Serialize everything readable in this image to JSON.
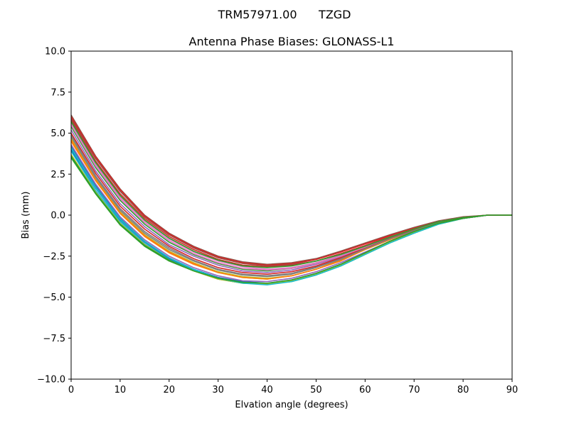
{
  "figure": {
    "suptitle": "TRM57971.00      TZGD"
  },
  "chart_data": {
    "type": "line",
    "title": "Antenna Phase Biases: GLONASS-L1",
    "xlabel": "Elvation angle (degrees)",
    "ylabel": "Bias (mm)",
    "xlim": [
      0,
      90
    ],
    "ylim": [
      -10,
      10
    ],
    "x_ticks": [
      0,
      10,
      20,
      30,
      40,
      50,
      60,
      70,
      80,
      90
    ],
    "x_tick_labels": [
      "0",
      "10",
      "20",
      "30",
      "40",
      "50",
      "60",
      "70",
      "80",
      "90"
    ],
    "y_ticks": [
      10,
      7.5,
      5,
      2.5,
      0,
      -2.5,
      -5,
      -7.5,
      -10
    ],
    "y_tick_labels": [
      "10.0",
      "7.5",
      "5.0",
      "2.5",
      "0.0",
      "−2.5",
      "−5.0",
      "−7.5",
      "−10.0"
    ],
    "grid": false,
    "legend": "none",
    "x": [
      0,
      5,
      10,
      15,
      20,
      25,
      30,
      35,
      40,
      45,
      50,
      55,
      60,
      65,
      70,
      75,
      80,
      85,
      90
    ],
    "series": [
      {
        "color": "#1f77b4",
        "values": [
          4.2,
          1.8,
          -0.2,
          -1.6,
          -2.6,
          -3.3,
          -3.8,
          -4.1,
          -4.2,
          -4.0,
          -3.6,
          -3.0,
          -2.3,
          -1.6,
          -1.0,
          -0.5,
          -0.2,
          0.0,
          0.0
        ]
      },
      {
        "color": "#ff7f0e",
        "values": [
          4.5,
          2.1,
          0.1,
          -1.3,
          -2.3,
          -3.0,
          -3.5,
          -3.8,
          -3.9,
          -3.7,
          -3.3,
          -2.8,
          -2.1,
          -1.5,
          -0.9,
          -0.45,
          -0.15,
          0.0,
          0.0
        ]
      },
      {
        "color": "#2ca02c",
        "values": [
          3.5,
          1.3,
          -0.6,
          -1.9,
          -2.8,
          -3.4,
          -3.9,
          -4.15,
          -4.2,
          -4.05,
          -3.65,
          -3.1,
          -2.4,
          -1.7,
          -1.1,
          -0.55,
          -0.2,
          0.0,
          0.0
        ]
      },
      {
        "color": "#d62728",
        "values": [
          5.8,
          3.3,
          1.3,
          -0.2,
          -1.3,
          -2.1,
          -2.7,
          -3.05,
          -3.15,
          -3.05,
          -2.8,
          -2.35,
          -1.85,
          -1.3,
          -0.85,
          -0.4,
          -0.15,
          0.0,
          0.0
        ]
      },
      {
        "color": "#9467bd",
        "values": [
          5.2,
          2.7,
          0.7,
          -0.7,
          -1.8,
          -2.5,
          -3.05,
          -3.4,
          -3.5,
          -3.35,
          -3.0,
          -2.55,
          -2.0,
          -1.4,
          -0.9,
          -0.45,
          -0.15,
          0.0,
          0.0
        ]
      },
      {
        "color": "#8c564b",
        "values": [
          6.1,
          3.6,
          1.6,
          0.0,
          -1.1,
          -1.9,
          -2.5,
          -2.85,
          -3.0,
          -2.9,
          -2.65,
          -2.2,
          -1.7,
          -1.2,
          -0.75,
          -0.35,
          -0.1,
          0.0,
          0.0
        ]
      },
      {
        "color": "#e377c2",
        "values": [
          5.6,
          3.1,
          1.1,
          -0.35,
          -1.45,
          -2.25,
          -2.8,
          -3.15,
          -3.3,
          -3.2,
          -2.9,
          -2.45,
          -1.9,
          -1.35,
          -0.85,
          -0.4,
          -0.15,
          0.0,
          0.0
        ]
      },
      {
        "color": "#7f7f7f",
        "values": [
          4.9,
          2.4,
          0.4,
          -1.0,
          -2.0,
          -2.75,
          -3.3,
          -3.6,
          -3.7,
          -3.55,
          -3.15,
          -2.65,
          -2.05,
          -1.45,
          -0.95,
          -0.45,
          -0.15,
          0.0,
          0.0
        ]
      },
      {
        "color": "#bcbd22",
        "values": [
          4.7,
          2.2,
          0.2,
          -1.2,
          -2.2,
          -2.9,
          -3.45,
          -3.75,
          -3.85,
          -3.7,
          -3.3,
          -2.75,
          -2.1,
          -1.5,
          -0.95,
          -0.45,
          -0.15,
          0.0,
          0.0
        ]
      },
      {
        "color": "#17becf",
        "values": [
          3.9,
          1.5,
          -0.4,
          -1.75,
          -2.7,
          -3.35,
          -3.85,
          -4.1,
          -4.2,
          -4.0,
          -3.6,
          -3.05,
          -2.35,
          -1.65,
          -1.05,
          -0.5,
          -0.2,
          0.0,
          0.0
        ]
      },
      {
        "color": "#1f77b4",
        "values": [
          4.0,
          1.65,
          -0.3,
          -1.65,
          -2.65,
          -3.3,
          -3.8,
          -4.05,
          -4.15,
          -3.95,
          -3.55,
          -3.0,
          -2.3,
          -1.6,
          -1.0,
          -0.5,
          -0.2,
          0.0,
          0.0
        ]
      },
      {
        "color": "#ff7f0e",
        "values": [
          4.6,
          2.15,
          0.15,
          -1.25,
          -2.25,
          -2.95,
          -3.5,
          -3.8,
          -3.9,
          -3.7,
          -3.3,
          -2.75,
          -2.1,
          -1.5,
          -0.95,
          -0.45,
          -0.15,
          0.0,
          0.0
        ]
      },
      {
        "color": "#2ca02c",
        "values": [
          5.4,
          2.9,
          0.9,
          -0.55,
          -1.65,
          -2.4,
          -2.95,
          -3.3,
          -3.4,
          -3.25,
          -2.95,
          -2.5,
          -1.95,
          -1.4,
          -0.9,
          -0.45,
          -0.15,
          0.0,
          0.0
        ]
      },
      {
        "color": "#d62728",
        "values": [
          5.0,
          2.55,
          0.55,
          -0.85,
          -1.9,
          -2.65,
          -3.2,
          -3.5,
          -3.6,
          -3.45,
          -3.1,
          -2.6,
          -2.0,
          -1.4,
          -0.9,
          -0.45,
          -0.15,
          0.0,
          0.0
        ]
      },
      {
        "color": "#9467bd",
        "values": [
          4.3,
          1.9,
          -0.1,
          -1.5,
          -2.5,
          -3.2,
          -3.7,
          -4.0,
          -4.05,
          -3.85,
          -3.45,
          -2.9,
          -2.25,
          -1.6,
          -1.0,
          -0.5,
          -0.2,
          0.0,
          0.0
        ]
      },
      {
        "color": "#8c564b",
        "values": [
          5.9,
          3.45,
          1.45,
          -0.1,
          -1.2,
          -2.0,
          -2.6,
          -2.95,
          -3.1,
          -3.0,
          -2.7,
          -2.25,
          -1.75,
          -1.25,
          -0.8,
          -0.4,
          -0.15,
          0.0,
          0.0
        ]
      },
      {
        "color": "#e377c2",
        "values": [
          5.5,
          3.0,
          1.0,
          -0.45,
          -1.55,
          -2.35,
          -2.9,
          -3.25,
          -3.35,
          -3.25,
          -2.95,
          -2.5,
          -1.95,
          -1.35,
          -0.85,
          -0.4,
          -0.15,
          0.0,
          0.0
        ]
      },
      {
        "color": "#7f7f7f",
        "values": [
          4.8,
          2.3,
          0.3,
          -1.1,
          -2.1,
          -2.8,
          -3.35,
          -3.65,
          -3.75,
          -3.6,
          -3.2,
          -2.7,
          -2.05,
          -1.45,
          -0.95,
          -0.45,
          -0.15,
          0.0,
          0.0
        ]
      },
      {
        "color": "#bcbd22",
        "values": [
          3.7,
          1.4,
          -0.5,
          -1.8,
          -2.75,
          -3.4,
          -3.9,
          -4.15,
          -4.2,
          -4.0,
          -3.6,
          -3.05,
          -2.35,
          -1.65,
          -1.05,
          -0.5,
          -0.2,
          0.0,
          0.0
        ]
      },
      {
        "color": "#17becf",
        "values": [
          4.1,
          1.7,
          -0.25,
          -1.6,
          -2.6,
          -3.3,
          -3.85,
          -4.15,
          -4.25,
          -4.05,
          -3.65,
          -3.1,
          -2.4,
          -1.7,
          -1.1,
          -0.55,
          -0.2,
          0.0,
          0.0
        ]
      },
      {
        "color": "#2ca02c",
        "values": [
          3.6,
          1.35,
          -0.55,
          -1.85,
          -2.75,
          -3.4,
          -3.85,
          -4.1,
          -4.15,
          -3.95,
          -3.55,
          -3.0,
          -2.3,
          -1.6,
          -1.0,
          -0.5,
          -0.2,
          0.0,
          0.0
        ]
      },
      {
        "color": "#d62728",
        "values": [
          6.0,
          3.55,
          1.55,
          -0.05,
          -1.15,
          -1.95,
          -2.55,
          -2.9,
          -3.05,
          -2.95,
          -2.7,
          -2.25,
          -1.75,
          -1.25,
          -0.8,
          -0.4,
          -0.15,
          0.0,
          0.0
        ]
      },
      {
        "color": "#2ca02c",
        "values": [
          5.7,
          3.2,
          1.2,
          -0.3,
          -1.4,
          -2.2,
          -2.75,
          -3.1,
          -3.2,
          -3.1,
          -2.8,
          -2.4,
          -1.9,
          -1.35,
          -0.85,
          -0.4,
          -0.15,
          0.0,
          0.0
        ]
      }
    ]
  }
}
